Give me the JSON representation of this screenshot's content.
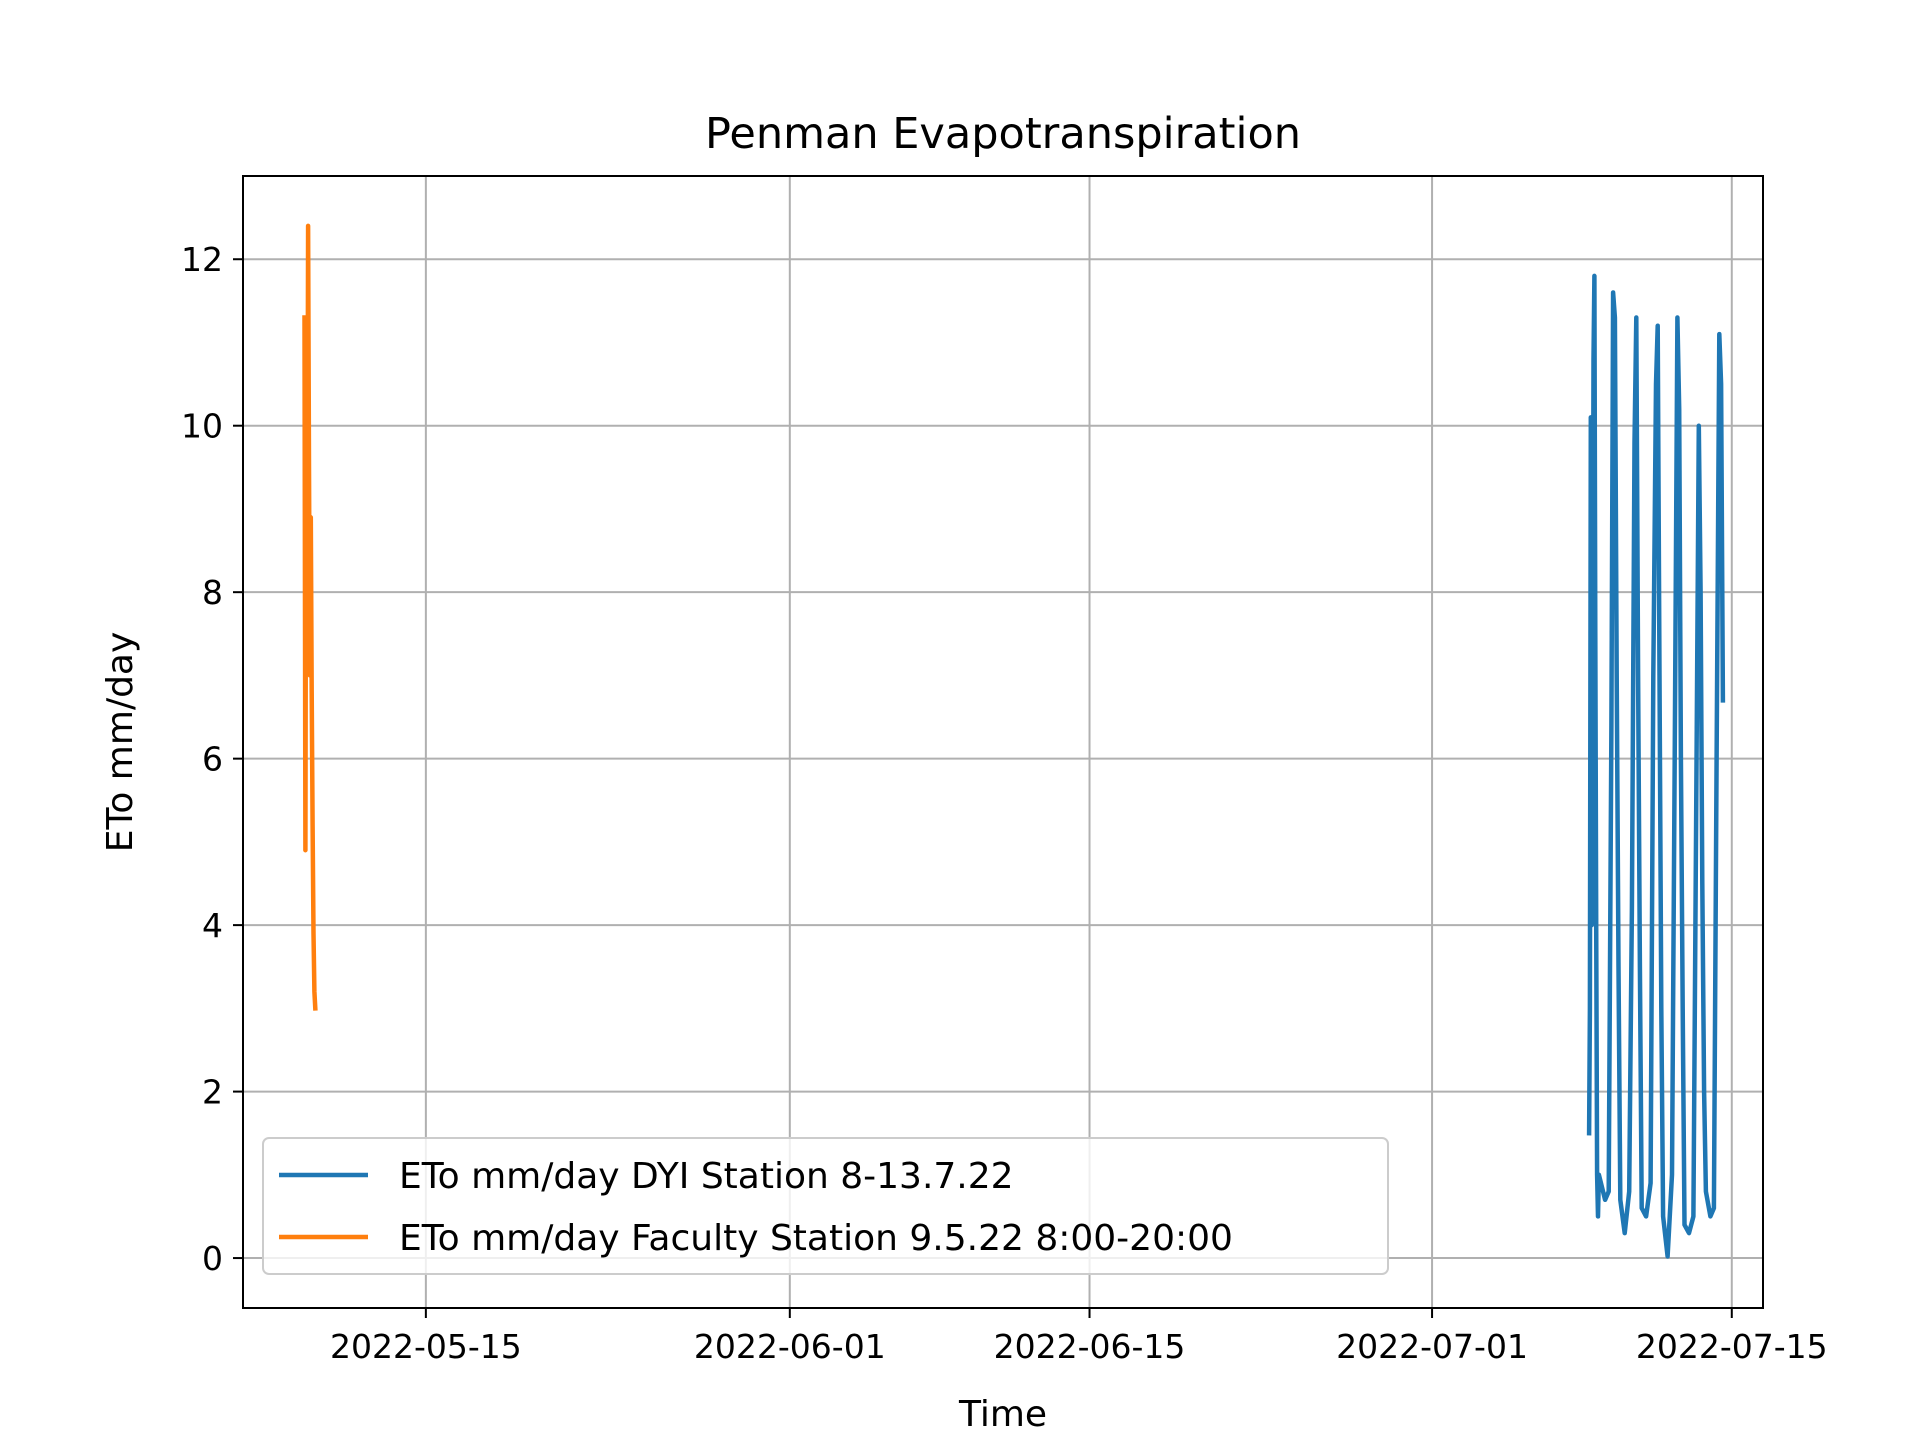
{
  "chart_data": {
    "type": "line",
    "title": "Penman Evapotranspiration",
    "xlabel": "Time",
    "ylabel": "ETo mm/day",
    "x_axis_type": "date",
    "xlim": [
      "2022-05-06T11:00",
      "2022-07-16T11:00"
    ],
    "ylim": [
      -0.6,
      13.0
    ],
    "x_ticks": [
      "2022-05-15",
      "2022-06-01",
      "2022-06-15",
      "2022-07-01",
      "2022-07-15"
    ],
    "y_ticks": [
      0,
      2,
      4,
      6,
      8,
      10,
      12
    ],
    "grid": true,
    "legend_position": "lower-left",
    "series": [
      {
        "name": "ETo mm/day DYI Station 8-13.7.22",
        "color": "#1f77b4",
        "x": [
          "2022-07-08T08:00",
          "2022-07-08T09:00",
          "2022-07-08T10:00",
          "2022-07-08T11:00",
          "2022-07-08T12:00",
          "2022-07-08T13:00",
          "2022-07-08T14:00",
          "2022-07-08T15:00",
          "2022-07-08T16:00",
          "2022-07-08T17:00",
          "2022-07-08T18:00",
          "2022-07-08T19:00",
          "2022-07-09T02:00",
          "2022-07-09T06:00",
          "2022-07-09T09:00",
          "2022-07-09T11:00",
          "2022-07-09T13:00",
          "2022-07-09T15:00",
          "2022-07-09T17:00",
          "2022-07-09T19:00",
          "2022-07-10T00:00",
          "2022-07-10T05:00",
          "2022-07-10T08:00",
          "2022-07-10T11:00",
          "2022-07-10T13:00",
          "2022-07-10T15:00",
          "2022-07-10T17:00",
          "2022-07-10T19:00",
          "2022-07-11T00:00",
          "2022-07-11T05:00",
          "2022-07-11T08:00",
          "2022-07-11T11:00",
          "2022-07-11T13:00",
          "2022-07-11T15:00",
          "2022-07-11T17:00",
          "2022-07-11T19:00",
          "2022-07-12T00:00",
          "2022-07-12T05:00",
          "2022-07-12T08:00",
          "2022-07-12T11:00",
          "2022-07-12T13:00",
          "2022-07-12T15:00",
          "2022-07-12T17:00",
          "2022-07-12T19:00",
          "2022-07-13T00:00",
          "2022-07-13T05:00",
          "2022-07-13T08:00",
          "2022-07-13T11:00",
          "2022-07-13T13:00",
          "2022-07-13T15:00",
          "2022-07-13T17:00",
          "2022-07-13T19:00",
          "2022-07-14T00:00",
          "2022-07-14T04:00",
          "2022-07-14T07:00",
          "2022-07-14T10:00",
          "2022-07-14T12:00",
          "2022-07-14T14:00"
        ],
        "values": [
          1.5,
          3.0,
          10.1,
          4.0,
          6.2,
          10.8,
          11.8,
          7.5,
          4.0,
          1.0,
          0.5,
          1.0,
          0.7,
          0.8,
          6.4,
          11.6,
          11.3,
          7.0,
          3.5,
          0.7,
          0.3,
          0.8,
          4.2,
          9.8,
          11.3,
          7.0,
          3.5,
          0.6,
          0.5,
          0.9,
          7.0,
          10.5,
          11.2,
          7.0,
          3.0,
          0.5,
          0.02,
          1.0,
          6.0,
          11.3,
          10.2,
          6.0,
          3.0,
          0.4,
          0.3,
          0.5,
          5.2,
          10.0,
          8.0,
          4.5,
          2.0,
          0.8,
          0.5,
          0.6,
          6.0,
          11.1,
          10.5,
          6.7
        ]
      },
      {
        "name": "ETo mm/day Faculty Station 9.5.22 8:00-20:00",
        "color": "#ff7f0e",
        "x": [
          "2022-05-09T08:00",
          "2022-05-09T09:00",
          "2022-05-09T10:00",
          "2022-05-09T11:00",
          "2022-05-09T12:00",
          "2022-05-09T13:00",
          "2022-05-09T14:00",
          "2022-05-09T15:00",
          "2022-05-09T16:00",
          "2022-05-09T17:00",
          "2022-05-09T18:00",
          "2022-05-09T19:00",
          "2022-05-09T20:00"
        ],
        "values": [
          11.3,
          4.9,
          11.0,
          7.8,
          12.4,
          9.5,
          7.0,
          8.9,
          6.8,
          5.2,
          3.9,
          3.2,
          3.0
        ]
      }
    ]
  }
}
